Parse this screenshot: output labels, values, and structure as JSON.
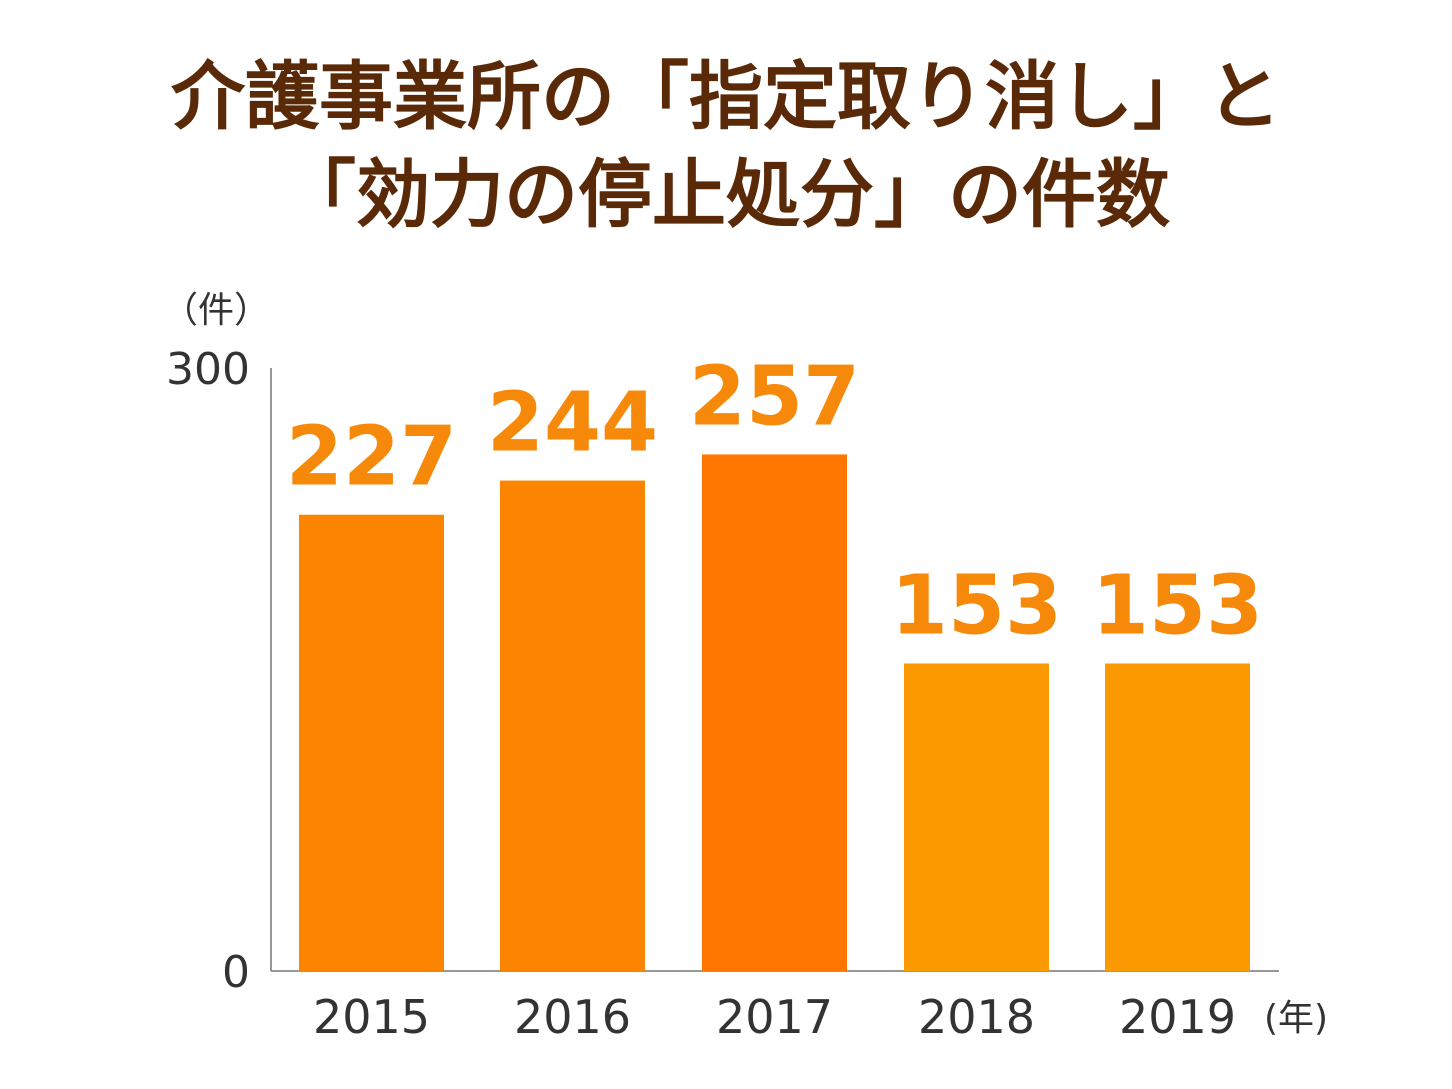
{
  "title": {
    "line1": "介護事業所の「指定取り消し」と",
    "line2": "「効力の停止処分」の件数"
  },
  "chart_data": {
    "type": "bar",
    "categories": [
      "2015",
      "2016",
      "2017",
      "2018",
      "2019"
    ],
    "values": [
      227,
      244,
      257,
      153,
      153
    ],
    "y_unit_label": "（件）",
    "x_unit_label": "(年)",
    "ylim": [
      0,
      300
    ],
    "y_ticks": [
      "0",
      "300"
    ],
    "grid": false,
    "colors": [
      "#fb8500",
      "#fb8500",
      "#ff7700",
      "#fb9a00",
      "#fb9a00"
    ],
    "value_label_color": "#f7890a"
  }
}
